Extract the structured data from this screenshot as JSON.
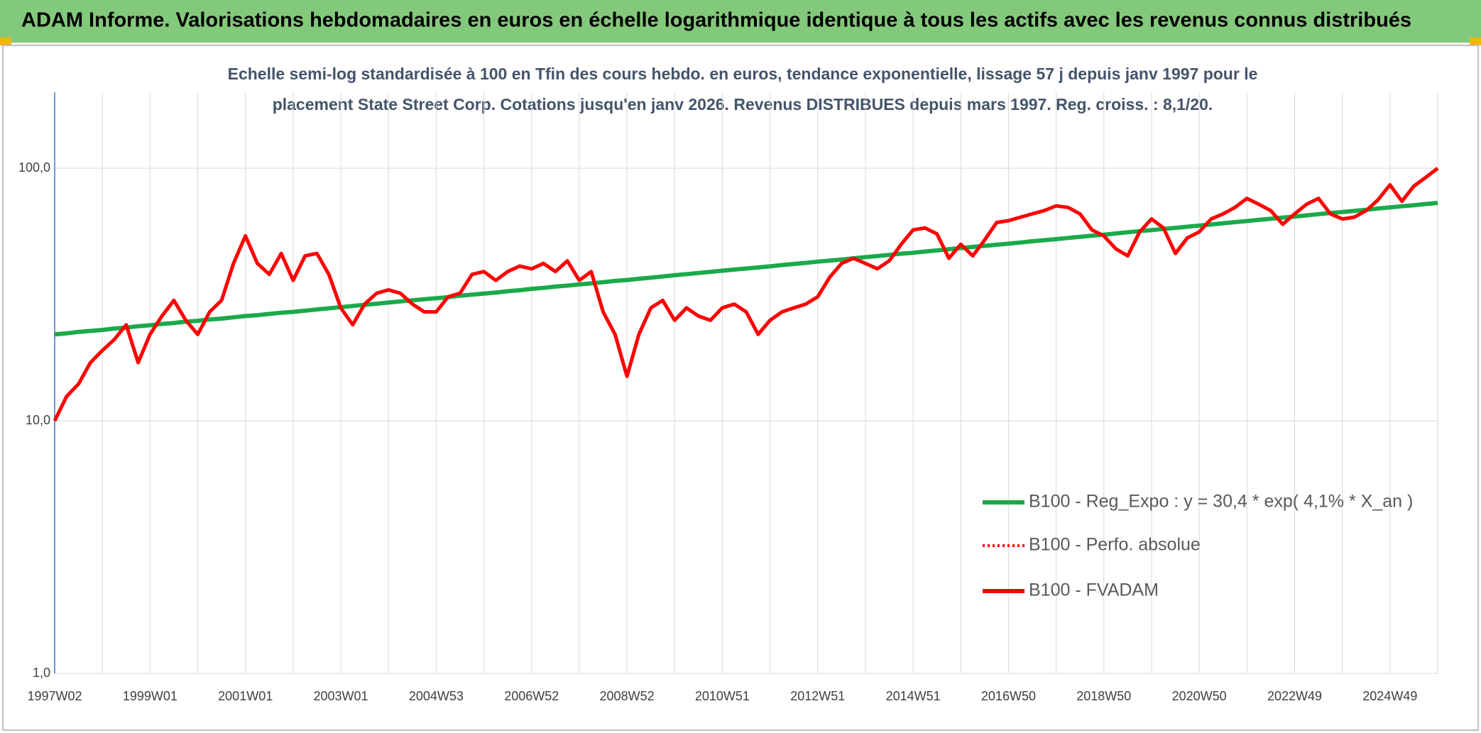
{
  "header": {
    "title": "ADAM Informe. Valorisations hebdomadaires en euros en échelle logarithmique identique à tous les actifs avec les revenus connus distribués"
  },
  "chart_data": {
    "type": "line",
    "subtitle": [
      "Echelle semi-log standardisée à 100 en Tfin des cours hebdo. en euros, tendance exponentielle, lissage 57 j depuis janv 1997 pour le",
      "placement State Street Corp. Cotations jusqu'en janv 2026. Revenus DISTRIBUES depuis mars 1997. Reg. croiss. : 8,1/20."
    ],
    "log_scale": true,
    "grid": true,
    "legend": "bottom-right",
    "ylim": [
      1,
      200
    ],
    "yticks": [
      {
        "value": 1,
        "label": "1,0"
      },
      {
        "value": 10,
        "label": "10,0"
      },
      {
        "value": 100,
        "label": "100,0"
      }
    ],
    "categories": [
      "1997W02",
      null,
      null,
      null,
      null,
      null,
      null,
      null,
      "1999W01",
      null,
      null,
      null,
      null,
      null,
      null,
      null,
      "2001W01",
      null,
      null,
      null,
      null,
      null,
      null,
      null,
      "2003W01",
      null,
      null,
      null,
      null,
      null,
      null,
      null,
      "2004W53",
      null,
      null,
      null,
      null,
      null,
      null,
      null,
      "2006W52",
      null,
      null,
      null,
      null,
      null,
      null,
      null,
      "2008W52",
      null,
      null,
      null,
      null,
      null,
      null,
      null,
      "2010W51",
      null,
      null,
      null,
      null,
      null,
      null,
      null,
      "2012W51",
      null,
      null,
      null,
      null,
      null,
      null,
      null,
      "2014W51",
      null,
      null,
      null,
      null,
      null,
      null,
      null,
      "2016W50",
      null,
      null,
      null,
      null,
      null,
      null,
      null,
      "2018W50",
      null,
      null,
      null,
      null,
      null,
      null,
      null,
      "2020W50",
      null,
      null,
      null,
      null,
      null,
      null,
      null,
      "2022W49",
      null,
      null,
      null,
      null,
      null,
      null,
      null,
      "2024W49",
      null,
      null,
      null,
      null
    ],
    "series": [
      {
        "name": "B100 - Reg_Expo : y = 30,4 * exp( 4,1% *  X_an )",
        "color": "#1aaa4a",
        "style": "solid",
        "values": [
          22.0,
          22.2,
          22.5,
          22.7,
          22.9,
          23.2,
          23.4,
          23.7,
          23.9,
          24.2,
          24.4,
          24.7,
          24.9,
          25.2,
          25.4,
          25.7,
          26.0,
          26.2,
          26.5,
          26.8,
          27.0,
          27.3,
          27.6,
          27.9,
          28.2,
          28.5,
          28.8,
          29.1,
          29.4,
          29.7,
          30.0,
          30.3,
          30.6,
          30.9,
          31.3,
          31.6,
          31.9,
          32.2,
          32.6,
          32.9,
          33.3,
          33.6,
          34.0,
          34.3,
          34.7,
          35.0,
          35.4,
          35.8,
          36.1,
          36.5,
          36.9,
          37.3,
          37.7,
          38.1,
          38.5,
          38.9,
          39.3,
          39.7,
          40.1,
          40.5,
          40.9,
          41.4,
          41.8,
          42.2,
          42.7,
          43.1,
          43.5,
          44.0,
          44.5,
          44.9,
          45.4,
          45.9,
          46.3,
          46.8,
          47.3,
          47.8,
          48.3,
          48.8,
          49.3,
          49.8,
          50.3,
          50.8,
          51.4,
          51.9,
          52.4,
          53.0,
          53.5,
          54.1,
          54.6,
          55.2,
          55.8,
          56.4,
          56.9,
          57.5,
          58.1,
          58.7,
          59.3,
          59.9,
          60.6,
          61.2,
          61.8,
          62.5,
          63.1,
          63.8,
          64.4,
          65.1,
          65.8,
          66.5,
          67.1,
          67.8,
          68.5,
          69.3,
          70.0,
          70.7,
          71.4,
          72.2,
          72.9
        ]
      },
      {
        "name": "B100 - Perfo. absolue",
        "color": "#ff0000",
        "style": "dotted",
        "values": [
          10.0,
          12.5,
          14,
          17,
          19,
          21,
          24,
          17,
          22,
          26,
          30,
          25,
          22,
          27,
          30,
          42,
          54,
          42,
          38,
          46,
          36,
          45,
          46,
          38,
          28,
          24,
          29,
          32,
          33,
          32,
          29,
          27,
          27,
          31,
          32,
          38,
          39,
          36,
          39,
          41,
          40,
          42,
          39,
          43,
          36,
          39,
          27,
          22,
          15,
          22,
          28,
          30,
          25,
          28,
          26,
          25,
          28,
          29,
          27,
          22,
          25,
          27,
          28,
          29,
          31,
          37,
          42,
          44,
          42,
          40,
          43,
          50,
          57,
          58,
          55,
          44,
          50,
          45,
          52,
          61,
          62,
          64,
          66,
          68,
          71,
          70,
          66,
          57,
          54,
          48,
          45,
          56,
          63,
          58,
          46,
          53,
          56,
          63,
          66,
          70,
          76,
          72,
          68,
          60,
          66,
          72,
          76,
          66,
          63,
          64,
          68,
          75,
          86,
          74,
          85,
          92,
          100
        ]
      },
      {
        "name": "B100 - FVADAM",
        "color": "#ff0000",
        "style": "solid",
        "values": [
          10.0,
          12.5,
          14,
          17,
          19,
          21,
          24,
          17,
          22,
          26,
          30,
          25,
          22,
          27,
          30,
          42,
          54,
          42,
          38,
          46,
          36,
          45,
          46,
          38,
          28,
          24,
          29,
          32,
          33,
          32,
          29,
          27,
          27,
          31,
          32,
          38,
          39,
          36,
          39,
          41,
          40,
          42,
          39,
          43,
          36,
          39,
          27,
          22,
          15,
          22,
          28,
          30,
          25,
          28,
          26,
          25,
          28,
          29,
          27,
          22,
          25,
          27,
          28,
          29,
          31,
          37,
          42,
          44,
          42,
          40,
          43,
          50,
          57,
          58,
          55,
          44,
          50,
          45,
          52,
          61,
          62,
          64,
          66,
          68,
          71,
          70,
          66,
          57,
          54,
          48,
          45,
          56,
          63,
          58,
          46,
          53,
          56,
          63,
          66,
          70,
          76,
          72,
          68,
          60,
          66,
          72,
          76,
          66,
          63,
          64,
          68,
          75,
          86,
          74,
          85,
          92,
          100
        ]
      }
    ]
  }
}
